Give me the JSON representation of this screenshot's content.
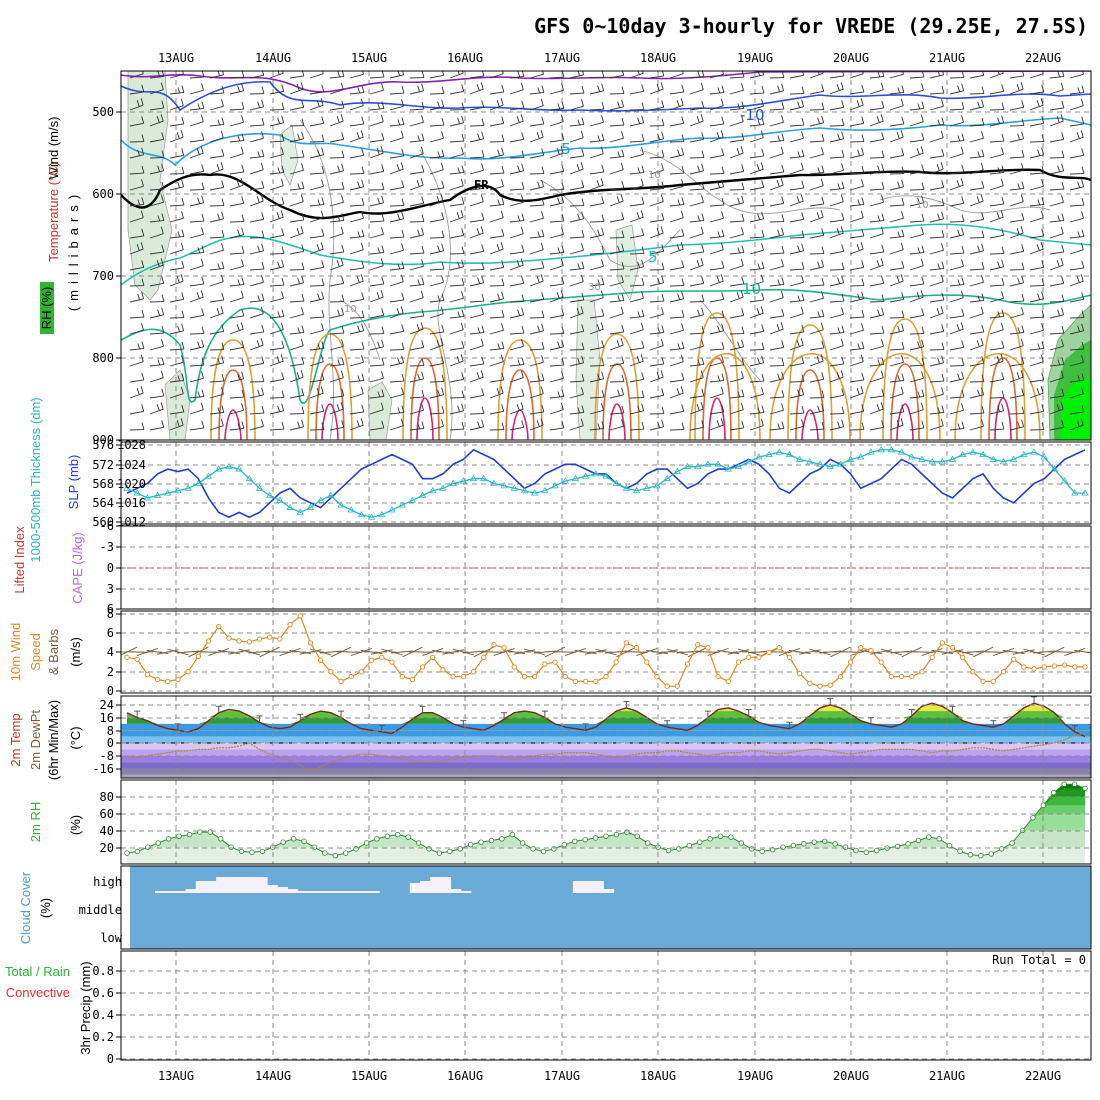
{
  "title": "GFS 0~10day 3-hourly for VREDE (29.25E, 27.5S)",
  "colors": {
    "cloud_bg": "#6aaad6",
    "cloud": "#f6f0f8",
    "rh_green": "#2db52d",
    "slp": "#1f3fcc",
    "thickness": "#2ab7c4",
    "wind": "#e08a1e",
    "barb": "#7a5c3a"
  },
  "days": [
    "13AUG",
    "14AUG",
    "15AUG",
    "16AUG",
    "17AUG",
    "18AUG",
    "19AUG",
    "20AUG",
    "21AUG",
    "22AUG"
  ],
  "panels": {
    "upper": {
      "label_wind": "Wind (m/s)",
      "label_temp": "Temperature (°C)",
      "label_rh": "RH (%)",
      "label_mb": "(millibars)",
      "pressure_ticks": [
        "500",
        "600",
        "700",
        "800",
        "900"
      ],
      "contour_labels": {
        "m10": "-10",
        "m5": "-5",
        "fr": "FR",
        "p5": "5",
        "p10": "10",
        "rh10": "10",
        "rh30": "30",
        "rh10b": "10",
        "rh10c": "10"
      }
    },
    "slp": {
      "label_thk": "1000-500mb Thickness (dm)",
      "label_slp": "SLP (mb)",
      "left_ticks": [
        "576",
        "572",
        "568",
        "564",
        "560"
      ],
      "right_ticks": [
        "1028",
        "1024",
        "1020",
        "1016",
        "1012"
      ]
    },
    "cape": {
      "label_li": "Lifted Index",
      "label_cape": "CAPE (J/kg)",
      "ticks": [
        "-6",
        "-3",
        "0",
        "3",
        "6"
      ]
    },
    "wind10": {
      "label_1": "10m Wind",
      "label_2": "Speed",
      "label_3": "& Barbs",
      "label_unit": "(m/s)",
      "ticks": [
        "8",
        "6",
        "4",
        "2",
        "0"
      ]
    },
    "temp": {
      "label_1": "2m Temp",
      "label_2": "2m DewPt",
      "label_3": "(6hr Min/Max)",
      "label_unit": "(°C)",
      "ticks": [
        "24",
        "16",
        "8",
        "0",
        "-8",
        "-16"
      ]
    },
    "rh": {
      "label": "2m RH",
      "label_unit": "(%)",
      "ticks": [
        "80",
        "60",
        "40",
        "20"
      ]
    },
    "cloud": {
      "label": "Cloud Cover",
      "label_unit": "(%)",
      "levels": [
        "high",
        "middle",
        "low"
      ]
    },
    "precip": {
      "label_a": "Total / Rain",
      "label_b": "Convective",
      "label_c": "3hr Precip (mm)",
      "run_total": "Run Total = 0",
      "ticks": [
        "0.8",
        "0.6",
        "0.4",
        "0.2",
        "0"
      ]
    }
  },
  "chart_data": [
    {
      "type": "line",
      "title": "SLP (mb) and 1000-500mb Thickness (dm)",
      "x": "3-hourly steps from 12AUG 12Z to 22AUG 06Z",
      "series": [
        {
          "name": "SLP (mb)",
          "axis": "right",
          "ylim": [
            1012,
            1028
          ],
          "values": [
            1018,
            1019,
            1020,
            1022,
            1023,
            1022.5,
            1023,
            1021,
            1017,
            1014,
            1013,
            1014,
            1013,
            1014,
            1016,
            1018,
            1019,
            1017,
            1016,
            1015,
            1017,
            1019,
            1021,
            1023,
            1024,
            1025,
            1026,
            1025,
            1024,
            1021,
            1021,
            1022,
            1024,
            1025,
            1027,
            1026,
            1025,
            1023,
            1021,
            1019,
            1020,
            1022,
            1023,
            1024,
            1024,
            1023,
            1022,
            1022,
            1020,
            1019,
            1020,
            1022,
            1023,
            1023,
            1021,
            1019,
            1020,
            1022,
            1023,
            1023,
            1024,
            1025,
            1024,
            1022,
            1019,
            1018,
            1020,
            1022,
            1023,
            1025,
            1024,
            1022,
            1019,
            1020,
            1021,
            1023,
            1025,
            1024,
            1022,
            1020,
            1018,
            1017,
            1019,
            1021,
            1022,
            1019,
            1017,
            1016,
            1018,
            1020,
            1021,
            1023,
            1025,
            1026,
            1027
          ]
        },
        {
          "name": "1000-500mb Thickness (dm)",
          "axis": "left",
          "ylim": [
            560,
            576
          ],
          "values": [
            567,
            566,
            565,
            565.5,
            566,
            566.5,
            567,
            568,
            569.5,
            571,
            571.5,
            571,
            569,
            567,
            565.5,
            564.5,
            563,
            562,
            563,
            564.5,
            565.5,
            563.5,
            562.5,
            561.5,
            561,
            561.5,
            562.5,
            563.5,
            564.5,
            565.5,
            566.5,
            567,
            568,
            568.5,
            569,
            569,
            568,
            567.5,
            567,
            566.5,
            566,
            566.5,
            567.5,
            568.5,
            569,
            569.5,
            570,
            569.5,
            568,
            567,
            566.5,
            567,
            567.5,
            569,
            570.5,
            571.5,
            571.5,
            572,
            572,
            571,
            571.5,
            572.5,
            573.5,
            574,
            574.5,
            574,
            573,
            572.5,
            572,
            571.5,
            572,
            573,
            573.5,
            574.5,
            575,
            575,
            574.5,
            573.5,
            573,
            572.5,
            572.5,
            573,
            574,
            574.5,
            574,
            573,
            572.5,
            573,
            574,
            574.5,
            573.5,
            571,
            568.5,
            566,
            566
          ]
        }
      ]
    },
    {
      "type": "line",
      "title": "10m Wind Speed (m/s)",
      "ylim": [
        0,
        8
      ],
      "values": [
        3.5,
        3.3,
        1.7,
        1.2,
        1,
        1.2,
        2,
        3.6,
        5.2,
        6.7,
        5.5,
        5.2,
        5.1,
        5.4,
        5.6,
        5.4,
        6.9,
        7.8,
        5,
        3.2,
        2,
        1,
        1.5,
        2,
        3.2,
        3.5,
        3,
        1.5,
        1.2,
        2.5,
        3.5,
        2.2,
        1.5,
        1.5,
        2,
        3.5,
        4.8,
        4.5,
        2.5,
        1.5,
        1.5,
        2.8,
        3,
        1.5,
        1,
        1,
        1,
        1.5,
        3,
        5,
        4.5,
        3,
        1.5,
        0.5,
        0.5,
        2.8,
        4.8,
        4.5,
        1.5,
        1,
        3,
        3.5,
        3.5,
        4,
        4.5,
        3.5,
        1.8,
        0.8,
        0.5,
        0.6,
        1.5,
        3,
        4.5,
        4.2,
        3,
        1.5,
        1.5,
        1.5,
        2,
        3.5,
        5,
        4.5,
        3.5,
        2,
        1,
        1,
        2,
        3.3,
        2.5,
        2.3,
        2.5,
        2.6,
        2.7,
        2.5,
        2.5
      ]
    },
    {
      "type": "area",
      "title": "2m Temp and DewPt (°C)",
      "ylim": [
        -22,
        28
      ],
      "series": [
        {
          "name": "2m Temp",
          "values": [
            19,
            16,
            14,
            11,
            9,
            8,
            7,
            9,
            14,
            19,
            21,
            20,
            17,
            13,
            10,
            9,
            10,
            14,
            18,
            20,
            19,
            16,
            12,
            9,
            8,
            7,
            6,
            10,
            15,
            19,
            19,
            16,
            12,
            10,
            9,
            8,
            11,
            15,
            19,
            20,
            19,
            16,
            12,
            10,
            9,
            8,
            10,
            15,
            20,
            22,
            20,
            16,
            12,
            10,
            9,
            8,
            11,
            16,
            21,
            22,
            20,
            17,
            13,
            11,
            10,
            9,
            12,
            17,
            22,
            24,
            22,
            18,
            14,
            12,
            11,
            10,
            12,
            17,
            23,
            25,
            23,
            19,
            14,
            12,
            11,
            10,
            12,
            17,
            22,
            25,
            23,
            19,
            12,
            7,
            4
          ]
        },
        {
          "name": "2m DewPt",
          "values": [
            -8,
            -9,
            -8,
            -7,
            -6,
            -5,
            -5,
            -4,
            -4,
            -3,
            -3,
            -2,
            0,
            -4,
            -7,
            -9,
            -11,
            -14,
            -18,
            -15,
            -12,
            -10,
            -8,
            -7,
            -7,
            -8,
            -9,
            -10,
            -11,
            -12,
            -12,
            -11,
            -10,
            -9,
            -8,
            -8,
            -8,
            -9,
            -10,
            -9,
            -8,
            -7,
            -7,
            -6,
            -6,
            -6,
            -7,
            -8,
            -9,
            -8,
            -7,
            -6,
            -6,
            -5,
            -5,
            -6,
            -7,
            -8,
            -7,
            -6,
            -6,
            -5,
            -5,
            -6,
            -7,
            -6,
            -5,
            -4,
            -4,
            -5,
            -6,
            -7,
            -6,
            -5,
            -4,
            -4,
            -4,
            -4,
            -5,
            -6,
            -5,
            -5,
            -4,
            -3,
            -3,
            -4,
            -5,
            -4,
            -3,
            -2,
            -1,
            0,
            2,
            5,
            6
          ]
        }
      ]
    },
    {
      "type": "area",
      "title": "2m RH (%)",
      "ylim": [
        0,
        100
      ],
      "values": [
        13,
        15,
        20,
        25,
        30,
        33,
        35,
        38,
        38,
        30,
        20,
        15,
        14,
        15,
        20,
        26,
        30,
        27,
        20,
        13,
        10,
        13,
        18,
        25,
        30,
        33,
        35,
        32,
        25,
        18,
        13,
        15,
        18,
        23,
        26,
        28,
        30,
        35,
        25,
        18,
        15,
        18,
        23,
        27,
        29,
        31,
        33,
        35,
        38,
        33,
        25,
        20,
        16,
        18,
        22,
        26,
        30,
        33,
        32,
        25,
        18,
        15,
        17,
        20,
        22,
        24,
        26,
        27,
        24,
        20,
        16,
        14,
        16,
        19,
        21,
        24,
        28,
        32,
        30,
        22,
        15,
        11,
        10,
        12,
        18,
        25,
        40,
        55,
        70,
        85,
        95,
        95,
        90
      ]
    },
    {
      "type": "bar",
      "title": "Cloud Cover (%)",
      "levels": [
        "high",
        "middle",
        "low"
      ],
      "high_layer_percent_by_step": [
        5,
        5,
        5,
        10,
        30,
        30,
        40,
        40,
        40,
        40,
        40,
        20,
        15,
        10,
        5,
        5,
        5,
        5,
        5,
        5,
        5,
        5,
        0,
        0,
        0,
        25,
        30,
        40,
        40,
        10,
        5,
        0,
        0,
        0,
        0,
        0,
        0,
        0,
        0,
        0,
        0,
        30,
        30,
        30,
        10,
        0
      ]
    },
    {
      "type": "bar",
      "title": "3hr Precip (mm)",
      "ylim": [
        0,
        1
      ],
      "values": [
        0,
        0,
        0,
        0,
        0,
        0,
        0,
        0,
        0,
        0,
        0,
        0,
        0,
        0,
        0,
        0,
        0,
        0,
        0,
        0,
        0,
        0,
        0,
        0,
        0,
        0,
        0,
        0,
        0,
        0,
        0,
        0,
        0,
        0,
        0,
        0,
        0,
        0,
        0,
        0,
        0,
        0,
        0,
        0,
        0,
        0,
        0,
        0,
        0,
        0,
        0,
        0,
        0,
        0,
        0,
        0,
        0,
        0,
        0,
        0,
        0,
        0,
        0,
        0,
        0,
        0,
        0,
        0,
        0,
        0,
        0,
        0,
        0,
        0,
        0,
        0,
        0,
        0,
        0,
        0,
        0,
        0,
        0,
        0,
        0,
        0,
        0,
        0,
        0,
        0,
        0,
        0,
        0,
        0,
        0
      ]
    }
  ]
}
